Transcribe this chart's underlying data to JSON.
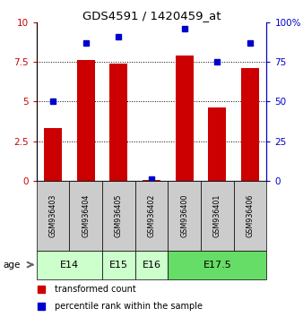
{
  "title": "GDS4591 / 1420459_at",
  "samples": [
    "GSM936403",
    "GSM936404",
    "GSM936405",
    "GSM936402",
    "GSM936400",
    "GSM936401",
    "GSM936406"
  ],
  "transformed_count": [
    3.3,
    7.6,
    7.4,
    0.05,
    7.9,
    4.6,
    7.1
  ],
  "percentile_rank": [
    50,
    87,
    91,
    1,
    96,
    75,
    87
  ],
  "ages": [
    {
      "label": "E14",
      "samples": [
        "GSM936403",
        "GSM936404"
      ],
      "color": "#ccffcc"
    },
    {
      "label": "E15",
      "samples": [
        "GSM936405"
      ],
      "color": "#ccffcc"
    },
    {
      "label": "E16",
      "samples": [
        "GSM936402"
      ],
      "color": "#ccffcc"
    },
    {
      "label": "E17.5",
      "samples": [
        "GSM936400",
        "GSM936401",
        "GSM936406"
      ],
      "color": "#66dd66"
    }
  ],
  "bar_color": "#cc0000",
  "dot_color": "#0000cc",
  "ylim_left": [
    0,
    10
  ],
  "ylim_right": [
    0,
    100
  ],
  "yticks_left": [
    0,
    2.5,
    5,
    7.5,
    10
  ],
  "yticks_right": [
    0,
    25,
    50,
    75,
    100
  ],
  "bg_color": "#ffffff",
  "sample_box_color": "#cccccc",
  "legend_label_bar": "transformed count",
  "legend_label_dot": "percentile rank within the sample",
  "bar_width": 0.55
}
